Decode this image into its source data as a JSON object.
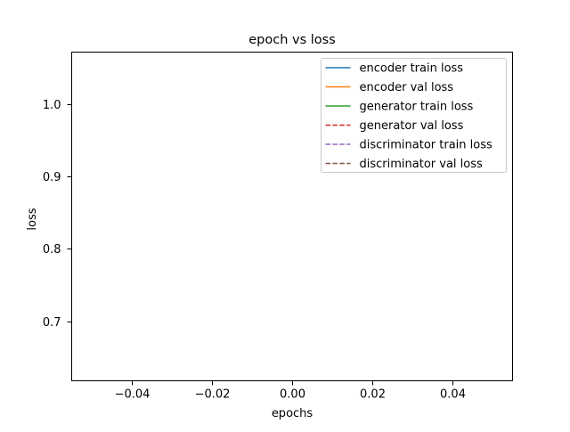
{
  "chart_data": {
    "type": "line",
    "title": "epoch vs loss",
    "xlabel": "epochs",
    "ylabel": "loss",
    "xlim": [
      -0.055,
      0.055
    ],
    "ylim": [
      0.6175,
      1.0725
    ],
    "xticks": [
      -0.04,
      -0.02,
      0.0,
      0.02,
      0.04
    ],
    "xtick_labels": [
      "−0.04",
      "−0.02",
      "0.00",
      "0.02",
      "0.04"
    ],
    "yticks": [
      0.7,
      0.8,
      0.9,
      1.0
    ],
    "ytick_labels": [
      "0.7",
      "0.8",
      "0.9",
      "1.0"
    ],
    "grid": false,
    "legend_position": "top-right",
    "series": [
      {
        "name": "encoder train loss",
        "color": "#1f77b4",
        "linestyle": "solid",
        "x": [],
        "y": []
      },
      {
        "name": "encoder val loss",
        "color": "#ff7f0e",
        "linestyle": "solid",
        "x": [],
        "y": []
      },
      {
        "name": "generator train loss",
        "color": "#2ca02c",
        "linestyle": "solid",
        "x": [],
        "y": []
      },
      {
        "name": "generator val loss",
        "color": "#d62728",
        "linestyle": "dashed",
        "x": [],
        "y": []
      },
      {
        "name": "discriminator train loss",
        "color": "#9467bd",
        "linestyle": "dashed",
        "x": [],
        "y": []
      },
      {
        "name": "discriminator val loss",
        "color": "#8c564b",
        "linestyle": "dashed",
        "x": [],
        "y": []
      }
    ]
  }
}
